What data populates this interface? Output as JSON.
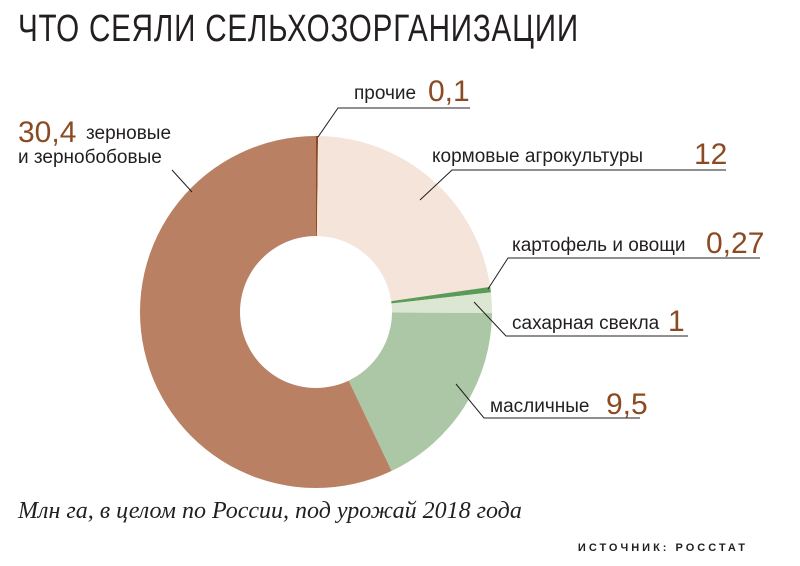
{
  "chart_data": {
    "type": "pie",
    "title": "ЧТО СЕЯЛИ СЕЛЬХОЗОРГАНИЗАЦИИ",
    "subtitle": "Млн га, в целом по России, под урожай 2018 года",
    "source": "ИСТОЧНИК: РОССТАТ",
    "slices": [
      {
        "label": "прочие",
        "value": 0.1,
        "value_text": "0,1",
        "color": "#8b4a22"
      },
      {
        "label": "кормовые агрокультуры",
        "value": 12,
        "value_text": "12",
        "color": "#f4e4da"
      },
      {
        "label": "картофель и овощи",
        "value": 0.27,
        "value_text": "0,27",
        "color": "#5c9a58"
      },
      {
        "label": "сахарная свекла",
        "value": 1,
        "value_text": "1",
        "color": "#dbe7d2"
      },
      {
        "label": "масличные",
        "value": 9.5,
        "value_text": "9,5",
        "color": "#acc7a5"
      },
      {
        "label": "зерновые\nи зернобобовые",
        "value": 30.4,
        "value_text": "30,4",
        "color": "#b98063"
      }
    ]
  }
}
